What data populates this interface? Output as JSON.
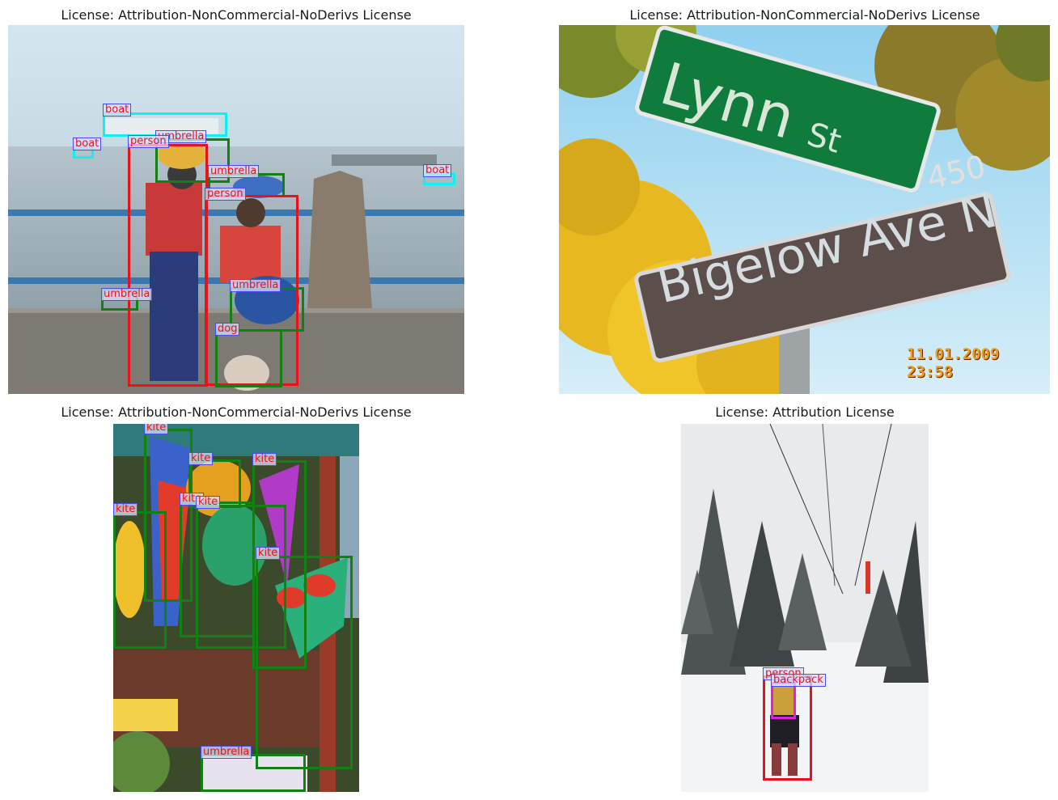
{
  "colors": {
    "red": "#e8121b",
    "green": "#128012",
    "cyan": "#10f0f0",
    "magenta": "#e020e0",
    "label_border": "#4a4cf0"
  },
  "panels": [
    {
      "title": "License: Attribution-NonCommercial-NoDerivs License",
      "labels": [
        "boat",
        "boat",
        "boat",
        "umbrella",
        "person",
        "umbrella",
        "person",
        "umbrella",
        "umbrella",
        "dog"
      ]
    },
    {
      "title": "License: Attribution-NonCommercial-NoDerivs License",
      "sign_top": "Lynn",
      "sign_top_suffix": "St",
      "sign_bottom": "Bigelow Ave N",
      "sign_number": "450",
      "timestamp": "11.01.2009 23:58"
    },
    {
      "title": "License: Attribution-NonCommercial-NoDerivs License",
      "labels": [
        "kite",
        "kite",
        "kite",
        "kite",
        "kite",
        "kite",
        "kite",
        "umbrella"
      ]
    },
    {
      "title": "License: Attribution License",
      "labels": [
        "person",
        "backpack"
      ]
    }
  ]
}
